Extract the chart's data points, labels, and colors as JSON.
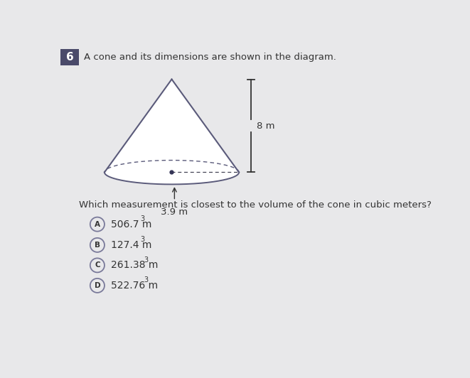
{
  "question_number": "6",
  "question_number_bg": "#4a4a6a",
  "question_text": "A cone and its dimensions are shown in the diagram.",
  "question2_text": "Which measurement is closest to the volume of the cone in cubic meters?",
  "height_label": "8 m",
  "radius_label": "3.9 m",
  "options": [
    {
      "letter": "A",
      "text": "506.7 m"
    },
    {
      "letter": "B",
      "text": "127.4 m"
    },
    {
      "letter": "C",
      "text": "261.38 m"
    },
    {
      "letter": "D",
      "text": "522.76 m"
    }
  ],
  "superscript": "3",
  "bg_color": "#e8e8ea",
  "cone_edge_color": "#5a5a7a",
  "cone_fill": "#ffffff",
  "text_color": "#333333",
  "circle_color": "#7a7a9a",
  "dot_color": "#333355",
  "dash_color": "#444455"
}
